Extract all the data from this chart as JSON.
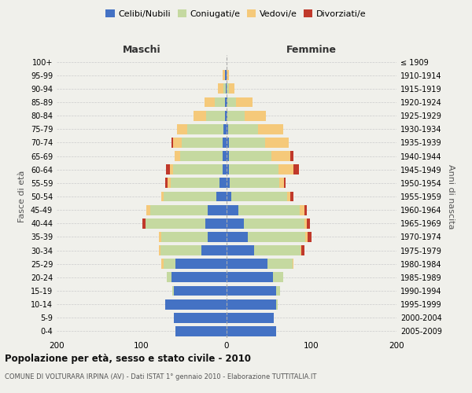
{
  "age_groups": [
    "100+",
    "95-99",
    "90-94",
    "85-89",
    "80-84",
    "75-79",
    "70-74",
    "65-69",
    "60-64",
    "55-59",
    "50-54",
    "45-49",
    "40-44",
    "35-39",
    "30-34",
    "25-29",
    "20-24",
    "15-19",
    "10-14",
    "5-9",
    "0-4"
  ],
  "birth_years": [
    "≤ 1909",
    "1910-1914",
    "1915-1919",
    "1920-1924",
    "1925-1929",
    "1930-1934",
    "1935-1939",
    "1940-1944",
    "1945-1949",
    "1950-1954",
    "1955-1959",
    "1960-1964",
    "1965-1969",
    "1970-1974",
    "1975-1979",
    "1980-1984",
    "1985-1989",
    "1990-1994",
    "1995-1999",
    "2000-2004",
    "2005-2009"
  ],
  "male": {
    "celibi": [
      0,
      2,
      1,
      2,
      2,
      4,
      5,
      5,
      5,
      8,
      12,
      22,
      25,
      22,
      30,
      60,
      65,
      62,
      72,
      62,
      60
    ],
    "coniugati": [
      0,
      0,
      3,
      12,
      22,
      42,
      48,
      50,
      58,
      58,
      62,
      68,
      70,
      55,
      48,
      14,
      5,
      2,
      0,
      0,
      0
    ],
    "vedovi": [
      0,
      3,
      6,
      12,
      15,
      12,
      10,
      6,
      4,
      3,
      3,
      4,
      0,
      3,
      2,
      3,
      0,
      0,
      0,
      0,
      0
    ],
    "divorziati": [
      0,
      0,
      0,
      0,
      0,
      0,
      2,
      0,
      4,
      3,
      0,
      0,
      4,
      0,
      0,
      0,
      0,
      0,
      0,
      0,
      0
    ]
  },
  "female": {
    "nubili": [
      0,
      0,
      0,
      1,
      1,
      2,
      3,
      3,
      3,
      4,
      6,
      14,
      20,
      25,
      32,
      48,
      55,
      58,
      58,
      56,
      58
    ],
    "coniugate": [
      0,
      0,
      3,
      10,
      20,
      35,
      42,
      50,
      58,
      58,
      65,
      72,
      72,
      68,
      55,
      30,
      12,
      5,
      2,
      0,
      0
    ],
    "vedove": [
      0,
      3,
      6,
      20,
      25,
      30,
      28,
      22,
      18,
      6,
      4,
      6,
      2,
      2,
      1,
      1,
      0,
      0,
      0,
      0,
      0
    ],
    "divorziate": [
      0,
      0,
      0,
      0,
      0,
      0,
      0,
      4,
      6,
      1,
      4,
      2,
      4,
      5,
      4,
      0,
      0,
      0,
      0,
      0,
      0
    ]
  },
  "colors": {
    "celibi": "#4472c4",
    "coniugati": "#c5d9a0",
    "vedovi": "#f5c97a",
    "divorziati": "#c0392b"
  },
  "xlim": 200,
  "title": "Popolazione per età, sesso e stato civile - 2010",
  "subtitle": "COMUNE DI VOLTURARA IRPINA (AV) - Dati ISTAT 1° gennaio 2010 - Elaborazione TUTTITALIA.IT",
  "ylabel_left": "Fasce di età",
  "ylabel_right": "Anni di nascita",
  "xlabel_maschi": "Maschi",
  "xlabel_femmine": "Femmine",
  "bg_color": "#f0f0eb"
}
